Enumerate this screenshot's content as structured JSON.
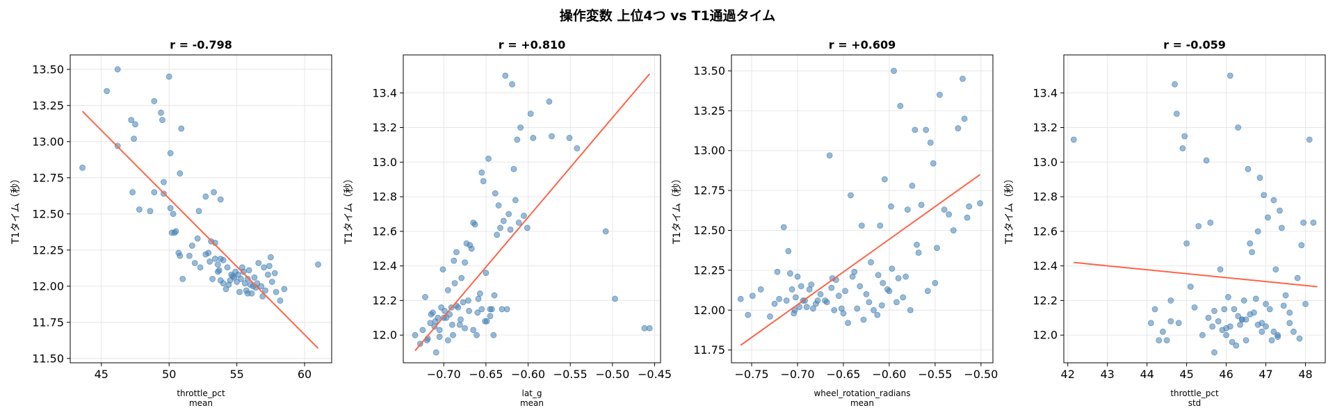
{
  "figure": {
    "title": "操作変数 上位4つ vs T1通過タイム"
  },
  "style": {
    "point_color": "#4682b4",
    "line_color": "#ff6347",
    "grid_color": "#e6e6e6"
  },
  "chart_data": [
    {
      "type": "scatter",
      "title": "r = -0.798",
      "xlabel": "throttle_pct\nmean",
      "ylabel": "T1タイム（秒）",
      "xlim": [
        42.7,
        62.0
      ],
      "ylim": [
        11.47,
        13.6
      ],
      "xticks": [
        45,
        50,
        55,
        60
      ],
      "xtick_labels": [
        "45",
        "50",
        "55",
        "60"
      ],
      "yticks": [
        11.5,
        11.75,
        12.0,
        12.25,
        12.5,
        12.75,
        13.0,
        13.25,
        13.5
      ],
      "ytick_labels": [
        "11.50",
        "11.75",
        "12.00",
        "12.25",
        "12.50",
        "12.75",
        "13.00",
        "13.25",
        "13.50"
      ],
      "grid": true,
      "fit_line": {
        "x": [
          43.6,
          61.0
        ],
        "y": [
          13.21,
          11.57
        ]
      },
      "points": {
        "x": [
          43.6,
          45.4,
          46.2,
          46.2,
          47.2,
          47.5,
          47.4,
          47.3,
          47.8,
          48.6,
          48.9,
          48.9,
          49.4,
          49.5,
          49.6,
          50.0,
          50.1,
          50.1,
          50.2,
          50.5,
          50.8,
          50.9,
          49.6,
          52.7,
          53.3,
          53.4,
          53.8,
          52.2,
          50.4,
          50.3,
          50.7,
          50.8,
          51.5,
          51.9,
          52.1,
          52.3,
          52.7,
          53.0,
          53.1,
          53.4,
          53.6,
          53.8,
          54.0,
          53.6,
          53.7,
          54.3,
          54.5,
          54.8,
          55.1,
          55.3,
          55.5,
          55.6,
          55.8,
          56.0,
          56.2,
          56.5,
          56.8,
          57.1,
          57.3,
          57.5,
          57.6,
          57.9,
          58.2,
          58.5,
          61.0,
          55.4,
          55.9,
          55.7,
          56.3,
          54.2,
          54.9,
          54.4,
          56.6,
          55.2,
          57.0,
          57.4,
          53.8,
          52.9,
          51.0,
          51.7,
          54.6,
          56.1,
          55.8,
          53.2,
          54.0,
          57.8,
          55.0,
          56.4,
          54.7,
          56.9
        ],
        "y": [
          12.82,
          13.35,
          13.5,
          12.97,
          13.15,
          13.12,
          13.02,
          12.65,
          12.53,
          12.52,
          12.65,
          13.28,
          13.2,
          13.15,
          12.64,
          13.45,
          12.92,
          12.54,
          12.37,
          12.38,
          12.78,
          13.09,
          12.72,
          12.62,
          12.65,
          12.3,
          12.6,
          12.52,
          12.37,
          12.5,
          12.23,
          12.21,
          12.21,
          12.16,
          12.33,
          12.13,
          12.22,
          12.17,
          12.31,
          12.19,
          12.1,
          12.04,
          12.02,
          12.15,
          12.11,
          12.13,
          12.04,
          12.06,
          12.08,
          12.05,
          12.1,
          12.02,
          12.05,
          12.01,
          12.0,
          12.02,
          12.0,
          11.97,
          12.08,
          12.2,
          12.03,
          11.96,
          11.9,
          11.98,
          12.15,
          12.13,
          12.11,
          11.97,
          12.06,
          11.98,
          12.1,
          12.01,
          12.16,
          11.96,
          12.13,
          12.14,
          12.19,
          12.23,
          12.05,
          12.28,
          12.08,
          11.95,
          11.95,
          12.05,
          12.18,
          12.09,
          12.03,
          11.99,
          12.07,
          11.93
        ]
      }
    },
    {
      "type": "scatter",
      "title": "r = +0.810",
      "xlabel": "lat_g\nmean",
      "ylabel": "T1タイム（秒）",
      "xlim": [
        -0.748,
        -0.443
      ],
      "ylim": [
        11.84,
        13.62
      ],
      "xticks": [
        -0.7,
        -0.65,
        -0.6,
        -0.55,
        -0.5,
        -0.45
      ],
      "xtick_labels": [
        "−0.70",
        "−0.65",
        "−0.60",
        "−0.55",
        "−0.50",
        "−0.45"
      ],
      "yticks": [
        12.0,
        12.2,
        12.4,
        12.6,
        12.8,
        13.0,
        13.2,
        13.4
      ],
      "ytick_labels": [
        "12.0",
        "12.2",
        "12.4",
        "12.6",
        "12.8",
        "13.0",
        "13.2",
        "13.4"
      ],
      "grid": true,
      "fit_line": {
        "x": [
          -0.734,
          -0.456
        ],
        "y": [
          11.91,
          13.51
        ]
      },
      "points": {
        "x": [
          -0.734,
          -0.728,
          -0.725,
          -0.722,
          -0.719,
          -0.716,
          -0.713,
          -0.711,
          -0.709,
          -0.707,
          -0.705,
          -0.703,
          -0.701,
          -0.699,
          -0.697,
          -0.695,
          -0.693,
          -0.691,
          -0.689,
          -0.687,
          -0.685,
          -0.683,
          -0.681,
          -0.679,
          -0.677,
          -0.675,
          -0.673,
          -0.671,
          -0.669,
          -0.667,
          -0.665,
          -0.663,
          -0.661,
          -0.659,
          -0.657,
          -0.655,
          -0.653,
          -0.651,
          -0.649,
          -0.647,
          -0.645,
          -0.643,
          -0.641,
          -0.639,
          -0.637,
          -0.635,
          -0.633,
          -0.631,
          -0.629,
          -0.627,
          -0.625,
          -0.623,
          -0.621,
          -0.619,
          -0.617,
          -0.615,
          -0.613,
          -0.611,
          -0.609,
          -0.605,
          -0.601,
          -0.597,
          -0.594,
          -0.575,
          -0.572,
          -0.551,
          -0.542,
          -0.508,
          -0.497,
          -0.462,
          -0.456,
          -0.7,
          -0.69,
          -0.68,
          -0.67,
          -0.66,
          -0.65,
          -0.64,
          -0.71,
          -0.72,
          -0.695,
          -0.685,
          -0.675,
          -0.665,
          -0.655,
          -0.645,
          -0.705,
          -0.715,
          -0.688
        ],
        "y": [
          12.0,
          11.95,
          12.03,
          12.22,
          11.98,
          12.07,
          12.13,
          12.05,
          11.9,
          12.1,
          12.03,
          12.16,
          12.38,
          12.14,
          12.1,
          11.97,
          12.12,
          12.16,
          12.0,
          12.3,
          12.48,
          12.16,
          12.06,
          12.33,
          12.19,
          12.42,
          12.53,
          12.2,
          12.52,
          12.5,
          12.65,
          12.64,
          12.0,
          12.21,
          12.24,
          12.94,
          12.89,
          12.08,
          12.08,
          13.02,
          12.15,
          12.15,
          12.0,
          12.82,
          12.58,
          12.75,
          12.62,
          12.15,
          12.66,
          13.5,
          12.15,
          12.7,
          12.61,
          13.45,
          12.96,
          12.78,
          13.13,
          12.65,
          13.2,
          12.69,
          12.62,
          13.28,
          13.14,
          13.35,
          13.15,
          13.14,
          13.08,
          12.6,
          12.21,
          12.04,
          12.04,
          12.1,
          12.06,
          12.09,
          12.14,
          12.13,
          12.36,
          12.23,
          12.08,
          11.97,
          12.26,
          12.17,
          12.04,
          12.03,
          12.15,
          12.11,
          11.99,
          12.12,
          12.43
        ]
      }
    },
    {
      "type": "scatter",
      "title": "r = +0.609",
      "xlabel": "wheel_rotation_radians\nmean",
      "ylabel": "T1タイム（秒）",
      "xlim": [
        -0.772,
        -0.487
      ],
      "ylim": [
        11.67,
        13.6
      ],
      "xticks": [
        -0.75,
        -0.7,
        -0.65,
        -0.6,
        -0.55,
        -0.5
      ],
      "xtick_labels": [
        "−0.75",
        "−0.70",
        "−0.65",
        "−0.60",
        "−0.55",
        "−0.50"
      ],
      "yticks": [
        11.75,
        12.0,
        12.25,
        12.5,
        12.75,
        13.0,
        13.25,
        13.5
      ],
      "ytick_labels": [
        "11.75",
        "12.00",
        "12.25",
        "12.50",
        "12.75",
        "13.00",
        "13.25",
        "13.50"
      ],
      "grid": true,
      "fit_line": {
        "x": [
          -0.762,
          -0.501
        ],
        "y": [
          11.78,
          12.85
        ]
      },
      "points": {
        "x": [
          -0.762,
          -0.754,
          -0.749,
          -0.73,
          -0.725,
          -0.72,
          -0.715,
          -0.71,
          -0.708,
          -0.706,
          -0.704,
          -0.702,
          -0.7,
          -0.698,
          -0.696,
          -0.694,
          -0.69,
          -0.685,
          -0.68,
          -0.675,
          -0.67,
          -0.665,
          -0.662,
          -0.66,
          -0.655,
          -0.65,
          -0.645,
          -0.642,
          -0.64,
          -0.635,
          -0.632,
          -0.63,
          -0.625,
          -0.62,
          -0.617,
          -0.613,
          -0.61,
          -0.608,
          -0.605,
          -0.602,
          -0.6,
          -0.598,
          -0.595,
          -0.59,
          -0.588,
          -0.585,
          -0.58,
          -0.575,
          -0.572,
          -0.57,
          -0.565,
          -0.56,
          -0.555,
          -0.552,
          -0.548,
          -0.545,
          -0.54,
          -0.535,
          -0.53,
          -0.525,
          -0.52,
          -0.518,
          -0.515,
          -0.513,
          -0.501,
          -0.74,
          -0.722,
          -0.712,
          -0.692,
          -0.687,
          -0.678,
          -0.668,
          -0.658,
          -0.652,
          -0.648,
          -0.638,
          -0.628,
          -0.622,
          -0.612,
          -0.607,
          -0.597,
          -0.592,
          -0.582,
          -0.577,
          -0.568,
          -0.558,
          -0.55,
          -0.703,
          -0.683,
          -0.663
        ],
        "y": [
          12.07,
          11.97,
          12.09,
          11.96,
          12.04,
          12.07,
          12.52,
          12.37,
          12.23,
          12.13,
          11.98,
          12.08,
          12.21,
          12.02,
          12.15,
          12.06,
          12.02,
          12.16,
          12.04,
          12.1,
          12.06,
          12.97,
          12.2,
          12.0,
          12.09,
          11.98,
          11.92,
          12.72,
          12.21,
          12.01,
          12.15,
          12.53,
          12.1,
          12.3,
          12.0,
          11.97,
          12.53,
          12.03,
          12.82,
          12.13,
          12.12,
          12.65,
          13.5,
          12.2,
          13.28,
          12.08,
          12.63,
          12.78,
          13.13,
          12.41,
          12.66,
          13.13,
          13.05,
          12.92,
          12.39,
          13.35,
          12.63,
          12.6,
          12.5,
          13.14,
          13.45,
          13.2,
          12.58,
          12.65,
          12.67,
          12.13,
          12.24,
          12.06,
          12.06,
          12.13,
          12.06,
          12.05,
          12.19,
          12.01,
          12.12,
          12.24,
          11.94,
          12.05,
          12.22,
          12.17,
          12.26,
          12.05,
          12.21,
          12.0,
          12.36,
          12.12,
          12.17,
          12.0,
          12.01,
          12.14
        ]
      }
    },
    {
      "type": "scatter",
      "title": "r = -0.059",
      "xlabel": "throttle_pct\nstd",
      "ylabel": "T1タイム（秒）",
      "xlim": [
        41.9,
        48.5
      ],
      "ylim": [
        11.84,
        13.62
      ],
      "xticks": [
        42,
        43,
        44,
        45,
        46,
        47,
        48
      ],
      "xtick_labels": [
        "42",
        "43",
        "44",
        "45",
        "46",
        "47",
        "48"
      ],
      "yticks": [
        12.0,
        12.2,
        12.4,
        12.6,
        12.8,
        13.0,
        13.2,
        13.4
      ],
      "ytick_labels": [
        "12.0",
        "12.2",
        "12.4",
        "12.6",
        "12.8",
        "13.0",
        "13.2",
        "13.4"
      ],
      "grid": true,
      "fit_line": {
        "x": [
          42.15,
          48.3
        ],
        "y": [
          12.42,
          12.28
        ]
      },
      "points": {
        "x": [
          42.15,
          44.1,
          44.2,
          44.3,
          44.4,
          44.5,
          44.6,
          44.7,
          44.75,
          44.8,
          44.9,
          44.95,
          45.0,
          45.1,
          45.3,
          45.4,
          45.5,
          45.55,
          45.6,
          45.65,
          45.7,
          45.8,
          45.85,
          45.9,
          45.95,
          46.0,
          46.05,
          46.1,
          46.15,
          46.2,
          46.25,
          46.3,
          46.35,
          46.4,
          46.45,
          46.5,
          46.55,
          46.6,
          46.65,
          46.7,
          46.75,
          46.8,
          46.85,
          46.9,
          46.95,
          47.0,
          47.05,
          47.1,
          47.15,
          47.2,
          47.25,
          47.3,
          47.35,
          47.4,
          47.45,
          47.5,
          47.6,
          47.7,
          47.8,
          47.85,
          47.9,
          47.95,
          48.0,
          48.1,
          48.2,
          46.0,
          46.3,
          46.6,
          46.8,
          47.0,
          46.4,
          46.9,
          47.3,
          45.7,
          46.1,
          46.5,
          47.6,
          47.2,
          45.2,
          44.6
        ],
        "y": [
          13.13,
          12.07,
          12.15,
          11.97,
          12.02,
          11.97,
          12.2,
          13.45,
          13.28,
          12.07,
          13.08,
          13.15,
          12.53,
          12.28,
          12.63,
          12.0,
          13.01,
          12.1,
          12.65,
          12.05,
          11.9,
          12.08,
          12.38,
          12.03,
          12.15,
          12.0,
          12.22,
          13.5,
          11.96,
          12.15,
          11.94,
          13.2,
          12.06,
          12.09,
          12.2,
          11.97,
          12.96,
          12.53,
          12.48,
          12.13,
          12.21,
          12.6,
          12.91,
          12.02,
          12.81,
          12.05,
          12.68,
          12.15,
          11.97,
          12.78,
          12.38,
          11.99,
          12.72,
          12.62,
          12.17,
          12.23,
          12.13,
          12.02,
          12.33,
          11.98,
          12.52,
          12.65,
          12.18,
          13.13,
          12.65,
          12.04,
          12.11,
          12.12,
          12.06,
          12.18,
          12.09,
          12.07,
          12.0,
          12.14,
          12.05,
          12.09,
          12.07,
          12.02,
          12.16,
          12.08
        ]
      }
    }
  ]
}
